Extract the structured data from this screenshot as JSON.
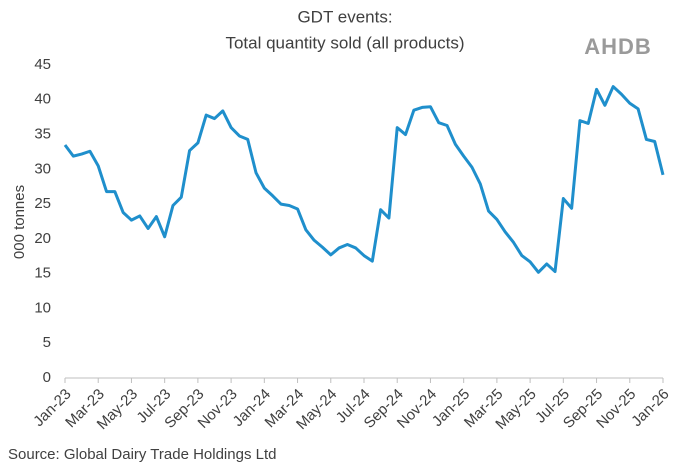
{
  "chart_data": {
    "type": "line",
    "title": "GDT events:",
    "subtitle": "Total quantity sold (all products)",
    "logo": "AHDB",
    "ylabel": "000 tonnes",
    "source": "Source: Global Dairy Trade Holdings Ltd",
    "categories": [
      "Jan-23",
      null,
      null,
      null,
      "Mar-23",
      null,
      null,
      null,
      "May-23",
      null,
      null,
      null,
      "Jul-23",
      null,
      null,
      null,
      "Sep-23",
      null,
      null,
      null,
      "Nov-23",
      null,
      null,
      null,
      "Jan-24",
      null,
      null,
      null,
      "Mar-24",
      null,
      null,
      null,
      "May-24",
      null,
      null,
      null,
      "Jul-24",
      null,
      null,
      null,
      "Sep-24",
      null,
      null,
      null,
      "Nov-24",
      null,
      null,
      null,
      "Jan-25",
      null,
      null,
      null,
      "Mar-25",
      null,
      null,
      null,
      "May-25",
      null,
      null,
      null,
      "Jul-25",
      null,
      null,
      null,
      "Sep-25",
      null,
      null,
      null,
      "Nov-25",
      null,
      null,
      null,
      "Jan-26"
    ],
    "series": [
      {
        "name": "Total quantity sold",
        "color": "#1f8fcc",
        "values": [
          33.5,
          31.9,
          32.2,
          32.6,
          30.5,
          26.8,
          26.8,
          23.8,
          22.7,
          23.3,
          21.5,
          23.2,
          20.3,
          24.8,
          26.0,
          32.7,
          33.8,
          37.8,
          37.3,
          38.4,
          36.0,
          34.8,
          34.3,
          29.5,
          27.3,
          26.2,
          25.0,
          24.8,
          24.3,
          21.3,
          19.8,
          18.8,
          17.7,
          18.7,
          19.2,
          18.7,
          17.6,
          16.8,
          24.2,
          23.0,
          36.0,
          35.0,
          38.5,
          38.9,
          39.0,
          36.7,
          36.3,
          33.6,
          31.9,
          30.3,
          27.9,
          24.0,
          22.8,
          21.0,
          19.5,
          17.6,
          16.7,
          15.2,
          16.4,
          15.3,
          25.8,
          24.4,
          37.0,
          36.6,
          41.5,
          39.2,
          41.9,
          40.8,
          39.5,
          38.7,
          34.3,
          34.0,
          29.2
        ]
      }
    ],
    "ylim": [
      0,
      45
    ],
    "yticks": [
      0,
      5,
      10,
      15,
      20,
      25,
      30,
      35,
      40,
      45
    ],
    "grid": false
  }
}
